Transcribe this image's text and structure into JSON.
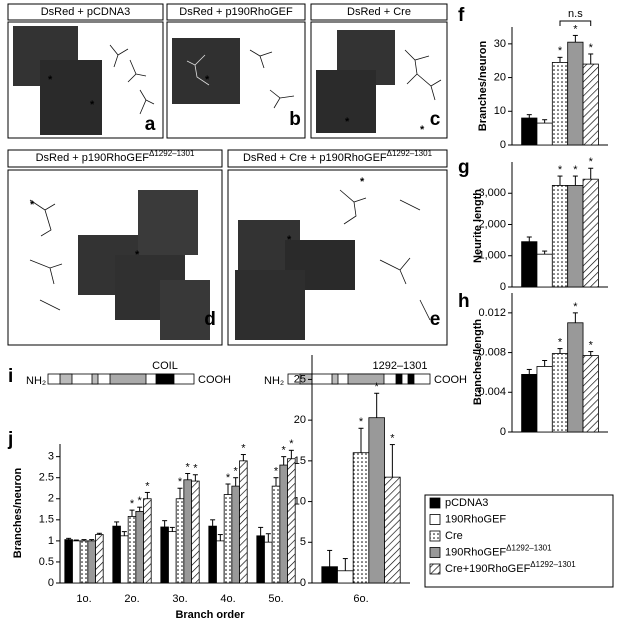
{
  "panels": [
    {
      "label": "a",
      "title": "DsRed + pCDNA3",
      "title_sup": "",
      "asterisk": "*"
    },
    {
      "label": "b",
      "title": "DsRed + p190RhoGEF",
      "title_sup": "",
      "asterisk": "*"
    },
    {
      "label": "c",
      "title": "DsRed + Cre",
      "title_sup": "",
      "asterisk": "*"
    },
    {
      "label": "d",
      "title": "DsRed + p190RhoGEF",
      "title_sup": "Δ1292–1301",
      "asterisk": "*"
    },
    {
      "label": "e",
      "title": "DsRed + Cre + p190RhoGEF",
      "title_sup": "Δ1292–1301",
      "asterisk": "*"
    }
  ],
  "domains": {
    "label": "i",
    "left_n": "NH₂",
    "left_mark": "COIL",
    "left_c": "COOH",
    "right_n": "NH₂",
    "right_mark": "1292–1301",
    "right_c": "COOH"
  },
  "chart_data": [
    {
      "type": "bar",
      "label": "f",
      "ylabel": "Branches/neuron",
      "categories": [
        null
      ],
      "ylim": [
        0,
        35
      ],
      "yticks": [
        0,
        10,
        20,
        30
      ],
      "marker": "*",
      "annotation": "n.s",
      "series": [
        {
          "fill": "black",
          "values": [
            8
          ],
          "errors": [
            1
          ],
          "significant": [
            false
          ]
        },
        {
          "fill": "white",
          "values": [
            6.5
          ],
          "errors": [
            1
          ],
          "significant": [
            false
          ]
        },
        {
          "fill": "dots",
          "values": [
            24.5
          ],
          "errors": [
            1.5
          ],
          "significant": [
            true
          ]
        },
        {
          "fill": "gray",
          "values": [
            30.5
          ],
          "errors": [
            2
          ],
          "significant": [
            true
          ]
        },
        {
          "fill": "hatch",
          "values": [
            24
          ],
          "errors": [
            3
          ],
          "significant": [
            true
          ]
        }
      ]
    },
    {
      "type": "bar",
      "label": "g",
      "ylabel": "Neurite  length",
      "categories": [
        null
      ],
      "ylim": [
        0,
        4000
      ],
      "yticks": [
        0,
        {
          "value": 1000,
          "label": "1,000"
        },
        {
          "value": 2000,
          "label": "2,000"
        },
        {
          "value": 3000,
          "label": "3,000"
        }
      ],
      "marker": "*",
      "series": [
        {
          "fill": "black",
          "values": [
            1450
          ],
          "errors": [
            150
          ],
          "significant": [
            false
          ]
        },
        {
          "fill": "white",
          "values": [
            1050
          ],
          "errors": [
            100
          ],
          "significant": [
            false
          ]
        },
        {
          "fill": "dots",
          "values": [
            3250
          ],
          "errors": [
            300
          ],
          "significant": [
            true
          ]
        },
        {
          "fill": "gray",
          "values": [
            3250
          ],
          "errors": [
            300
          ],
          "significant": [
            true
          ]
        },
        {
          "fill": "hatch",
          "values": [
            3450
          ],
          "errors": [
            350
          ],
          "significant": [
            true
          ]
        }
      ]
    },
    {
      "type": "bar",
      "label": "h",
      "ylabel": "Branches/length",
      "categories": [
        null
      ],
      "ylim": [
        0,
        0.014
      ],
      "yticks": [
        0,
        0.004,
        0.008,
        0.012
      ],
      "marker": "*",
      "series": [
        {
          "fill": "black",
          "values": [
            0.0058
          ],
          "errors": [
            0.0005
          ],
          "significant": [
            false
          ]
        },
        {
          "fill": "white",
          "values": [
            0.0066
          ],
          "errors": [
            0.0006
          ],
          "significant": [
            false
          ]
        },
        {
          "fill": "dots",
          "values": [
            0.0079
          ],
          "errors": [
            0.0005
          ],
          "significant": [
            true
          ]
        },
        {
          "fill": "gray",
          "values": [
            0.011
          ],
          "errors": [
            0.001
          ],
          "significant": [
            true
          ]
        },
        {
          "fill": "hatch",
          "values": [
            0.0077
          ],
          "errors": [
            0.0004
          ],
          "significant": [
            true
          ]
        }
      ]
    },
    {
      "type": "bar",
      "label": "j",
      "ylabel": "Branches/neuron",
      "xlabel": "Branch order",
      "categories": [
        "1o.",
        "2o.",
        "3o.",
        "4o.",
        "5o."
      ],
      "ylim": [
        0,
        3.3
      ],
      "yticks": [
        0,
        0.5,
        1,
        1.5,
        2,
        2.5,
        3
      ],
      "marker": "*",
      "series": [
        {
          "name": "pCDNA3",
          "name_sup": "",
          "fill": "black",
          "values": [
            1.03,
            1.35,
            1.33,
            1.35,
            1.12
          ],
          "errors": [
            0.03,
            0.1,
            0.15,
            0.15,
            0.2
          ],
          "significant": [
            false,
            false,
            false,
            false,
            false
          ]
        },
        {
          "name": "190RhoGEF",
          "name_sup": "",
          "fill": "white",
          "values": [
            1.0,
            1.12,
            1.22,
            1.0,
            0.97
          ],
          "errors": [
            0.02,
            0.1,
            0.1,
            0.15,
            0.2
          ],
          "significant": [
            false,
            false,
            false,
            false,
            false
          ]
        },
        {
          "name": "Cre",
          "name_sup": "",
          "fill": "dots",
          "values": [
            1.0,
            1.58,
            2.0,
            2.1,
            2.3
          ],
          "errors": [
            0.03,
            0.15,
            0.25,
            0.25,
            0.2
          ],
          "significant": [
            false,
            true,
            true,
            true,
            true
          ]
        },
        {
          "name": "190RhoGEF",
          "name_sup": "Δ1292–1301",
          "fill": "gray",
          "values": [
            1.0,
            1.7,
            2.45,
            2.3,
            2.8
          ],
          "errors": [
            0.03,
            0.1,
            0.15,
            0.2,
            0.2
          ],
          "significant": [
            false,
            true,
            true,
            true,
            true
          ]
        },
        {
          "name": "Cre+190RhoGEF",
          "name_sup": "Δ1292–1301",
          "fill": "hatch",
          "values": [
            1.15,
            2.0,
            2.42,
            2.9,
            2.95
          ],
          "errors": [
            0.03,
            0.15,
            0.15,
            0.15,
            0.2
          ],
          "significant": [
            false,
            true,
            true,
            true,
            true
          ]
        }
      ]
    },
    {
      "type": "bar",
      "categories": [
        "6o."
      ],
      "ylim": [
        0,
        28
      ],
      "yticks": [
        0,
        5,
        10,
        15,
        20,
        25
      ],
      "marker": "*",
      "series": [
        {
          "fill": "black",
          "values": [
            2
          ],
          "errors": [
            2
          ],
          "significant": [
            false
          ]
        },
        {
          "fill": "white",
          "values": [
            1.5
          ],
          "errors": [
            1.5
          ],
          "significant": [
            false
          ]
        },
        {
          "fill": "dots",
          "values": [
            16
          ],
          "errors": [
            3
          ],
          "significant": [
            true
          ]
        },
        {
          "fill": "gray",
          "values": [
            20.3
          ],
          "errors": [
            3
          ],
          "significant": [
            true
          ]
        },
        {
          "fill": "hatch",
          "values": [
            13
          ],
          "errors": [
            4
          ],
          "significant": [
            true
          ]
        }
      ]
    }
  ]
}
